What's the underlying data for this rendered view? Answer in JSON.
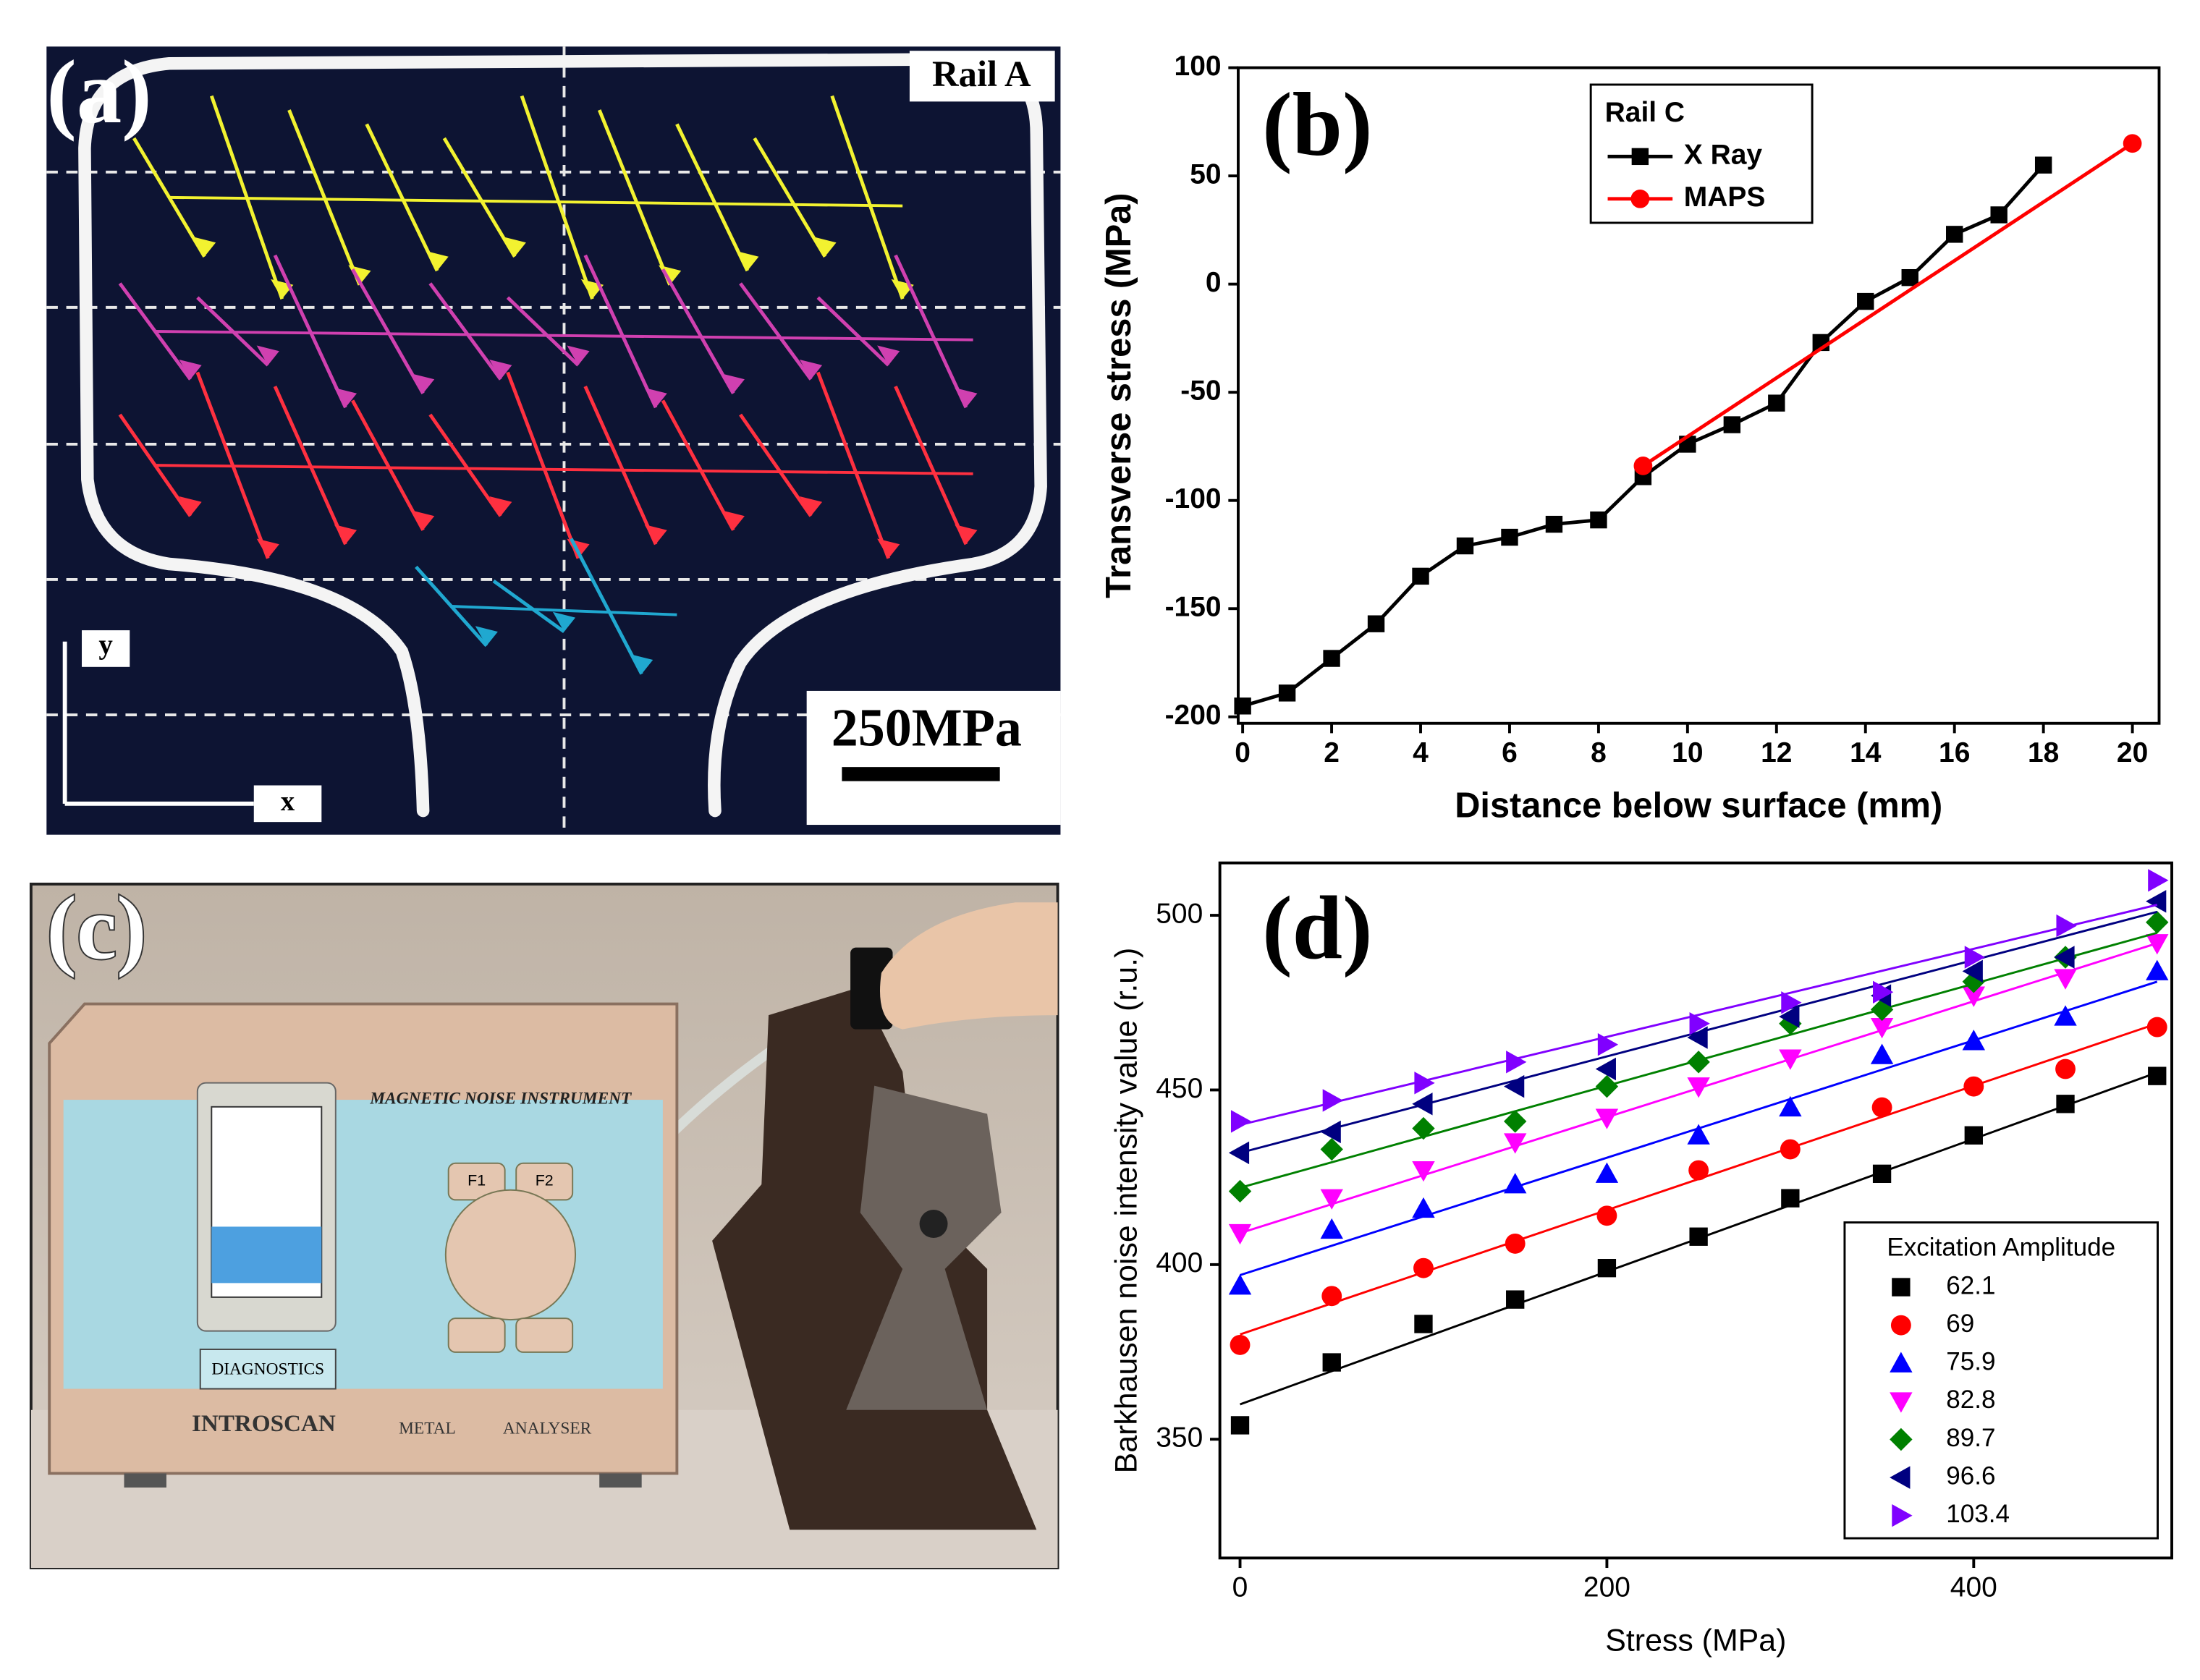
{
  "photos": {
    "a": {
      "label": "(a)",
      "rail": "Rail A",
      "scale": "250MPa",
      "y_axis": "y",
      "x_axis": "x"
    },
    "c": {
      "label": "(c)",
      "instrument": "MAGNETIC NOISE INSTRUMENT",
      "mode": "DIAGNOSTICS",
      "brand": "INTROSCAN",
      "word1": "METAL",
      "word2": "ANALYSER",
      "key1": "F1",
      "key2": "F2"
    }
  },
  "chart_data": [
    {
      "type": "line",
      "panel_label": "(b)",
      "x_label": "Distance below surface (mm)",
      "y_label": "Transverse stress (MPa)",
      "xlim": [
        -0.1,
        20.6
      ],
      "ylim": [
        -203,
        100
      ],
      "xticks": [
        0,
        2,
        4,
        6,
        8,
        10,
        12,
        14,
        16,
        18,
        20
      ],
      "yticks": [
        -200,
        -150,
        -100,
        -50,
        0,
        50,
        100
      ],
      "legend_title": "Rail C",
      "legend": "upper left",
      "series": [
        {
          "name": "X Ray",
          "color": "#000000",
          "marker": "square",
          "x": [
            0,
            1,
            2,
            3,
            4,
            5,
            6,
            7,
            8,
            9,
            10,
            11,
            12,
            13,
            14,
            15,
            16,
            17,
            18
          ],
          "values": [
            -195,
            -189,
            -173,
            -157,
            -135,
            -121,
            -117,
            -111,
            -109,
            -89,
            -74,
            -65,
            -55,
            -27,
            -8,
            3,
            23,
            32,
            55
          ]
        },
        {
          "name": "MAPS",
          "color": "#ff0000",
          "marker": "circle",
          "x": [
            9,
            20
          ],
          "values": [
            -84,
            65
          ]
        }
      ]
    },
    {
      "type": "scatter",
      "panel_label": "(d)",
      "x_label": "Stress (MPa)",
      "y_label": "Barkhausen noise intensity value (r.u.)",
      "xlim": [
        -11,
        508
      ],
      "ylim": [
        316,
        515
      ],
      "xticks": [
        0,
        200,
        400
      ],
      "yticks": [
        350,
        400,
        450,
        500
      ],
      "legend_title": "Excitation Amplitude",
      "legend": "lower right",
      "x": [
        0,
        50,
        100,
        150,
        200,
        250,
        300,
        350,
        400,
        450,
        500
      ],
      "series": [
        {
          "name": "62.1",
          "color": "#000000",
          "marker": "square",
          "values": [
            354,
            372,
            383,
            390,
            399,
            408,
            419,
            426,
            437,
            446,
            454
          ],
          "fit": [
            360,
            455
          ]
        },
        {
          "name": "69",
          "color": "#ff0000",
          "marker": "circle",
          "values": [
            377,
            391,
            399,
            406,
            414,
            427,
            433,
            445,
            451,
            456,
            468
          ],
          "fit": [
            380,
            469
          ]
        },
        {
          "name": "75.9",
          "color": "#0000ff",
          "marker": "triangle-up",
          "values": [
            394,
            410,
            416,
            423,
            426,
            437,
            445,
            460,
            464,
            471,
            484
          ],
          "fit": [
            397,
            481
          ]
        },
        {
          "name": "82.8",
          "color": "#ff00ff",
          "marker": "triangle-down",
          "values": [
            409,
            419,
            427,
            435,
            442,
            451,
            459,
            468,
            477,
            482,
            492
          ],
          "fit": [
            409,
            492
          ]
        },
        {
          "name": "89.7",
          "color": "#008000",
          "marker": "diamond",
          "values": [
            421,
            433,
            439,
            441,
            451,
            458,
            469,
            473,
            481,
            488,
            498
          ],
          "fit": [
            422,
            495
          ]
        },
        {
          "name": "96.6",
          "color": "#000080",
          "marker": "triangle-left",
          "values": [
            432,
            438,
            446,
            451,
            456,
            465,
            471,
            477,
            484,
            488,
            504
          ],
          "fit": [
            432,
            501
          ]
        },
        {
          "name": "103.4",
          "color": "#8000ff",
          "marker": "triangle-right",
          "values": [
            441,
            447,
            452,
            458,
            463,
            469,
            475,
            478,
            488,
            497,
            510
          ],
          "fit": [
            440,
            503
          ]
        }
      ]
    }
  ]
}
